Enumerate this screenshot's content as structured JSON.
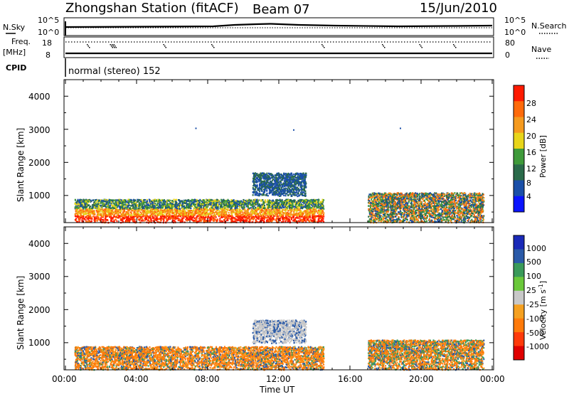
{
  "header": {
    "title": "Zhongshan Station (fitACF)",
    "beam": "Beam 07",
    "date": "15/Jun/2010"
  },
  "status_panels": {
    "nsky_label": "N.Sky",
    "nsky_ticks": [
      "10^5",
      "10^0"
    ],
    "nsearch_label": "N.Search",
    "freq_label": "Freq.",
    "freq_unit": "[MHz]",
    "freq_ticks": [
      "18",
      "8"
    ],
    "nave_label": "Nave",
    "nave_ticks": [
      "80",
      "0"
    ],
    "cpid_label": "CPID",
    "cpid_text": "normal (stereo) 152"
  },
  "chart_data": [
    {
      "type": "heatmap",
      "panel": "power",
      "ylabel": "Slant Range [km]",
      "xlabel": "",
      "x_ticks": [
        "00:00",
        "04:00",
        "08:00",
        "12:00",
        "16:00",
        "20:00",
        "00:00"
      ],
      "xlim": [
        0,
        24
      ],
      "y_ticks": [
        "1000",
        "2000",
        "3000",
        "4000"
      ],
      "ylim": [
        180,
        4500
      ],
      "colorbar": {
        "label": "Power [dB]",
        "ticks": [
          "4",
          "8",
          "12",
          "16",
          "20",
          "24",
          "28"
        ],
        "range": [
          0,
          30
        ],
        "colors": [
          "#0a14ff",
          "#1a4fa8",
          "#2a6a4a",
          "#3f9a3a",
          "#e8d51a",
          "#f59a1e",
          "#ff6a0a",
          "#ff1a00"
        ]
      },
      "description_values": {
        "bands": [
          {
            "t_start": 0.5,
            "t_end": 14.5,
            "range_min": 200,
            "range_max": 900,
            "value": 24
          },
          {
            "t_start": 10.5,
            "t_end": 13.5,
            "range_min": 1000,
            "range_max": 1700,
            "value": 10
          },
          {
            "t_start": 17.0,
            "t_end": 23.5,
            "range_min": 200,
            "range_max": 1100,
            "value": 14
          }
        ],
        "isolated_points": [
          {
            "t": 7.3,
            "range": 3050
          },
          {
            "t": 12.8,
            "range": 3000
          },
          {
            "t": 18.8,
            "range": 3050
          }
        ]
      }
    },
    {
      "type": "heatmap",
      "panel": "velocity",
      "ylabel": "Slant Range [km]",
      "xlabel": "Time UT",
      "x_ticks": [
        "00:00",
        "04:00",
        "08:00",
        "12:00",
        "16:00",
        "20:00",
        "00:00"
      ],
      "xlim": [
        0,
        24
      ],
      "y_ticks": [
        "1000",
        "2000",
        "3000",
        "4000"
      ],
      "ylim": [
        180,
        4500
      ],
      "colorbar": {
        "label": "Velocity [m s",
        "label_superscript": "-1",
        "label_close": "]",
        "ticks": [
          "1000",
          "500",
          "100",
          "25",
          "-25",
          "-100",
          "-500",
          "-1000"
        ],
        "colors": [
          "#1a2ab8",
          "#2a5aa8",
          "#3a9a5a",
          "#6ac83a",
          "#c8c8c8",
          "#f5a020",
          "#ff7a0a",
          "#ff3a0a",
          "#e00000"
        ]
      },
      "description_values": {
        "bands": [
          {
            "t_start": 0.5,
            "t_end": 14.5,
            "range_min": 200,
            "range_max": 900,
            "value": -150
          },
          {
            "t_start": 10.5,
            "t_end": 13.5,
            "range_min": 1000,
            "range_max": 1700,
            "value": 0
          },
          {
            "t_start": 17.0,
            "t_end": 23.5,
            "range_min": 200,
            "range_max": 1100,
            "value": -100
          }
        ]
      }
    }
  ]
}
